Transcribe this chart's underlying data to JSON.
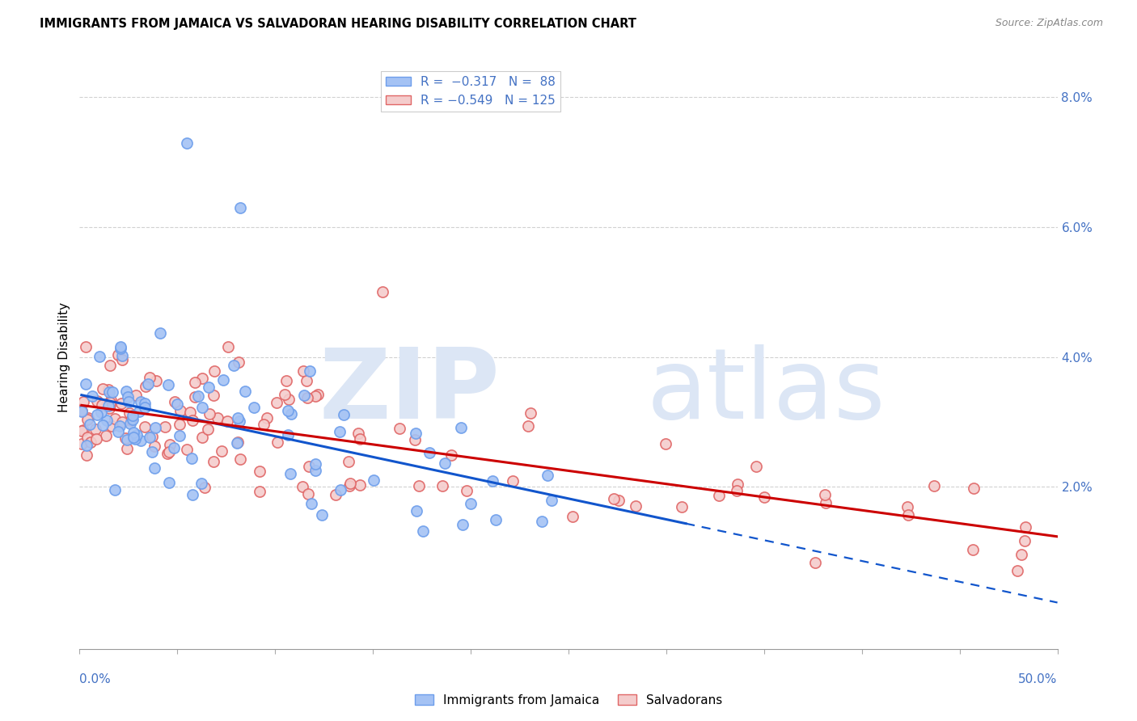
{
  "title": "IMMIGRANTS FROM JAMAICA VS SALVADORAN HEARING DISABILITY CORRELATION CHART",
  "source": "Source: ZipAtlas.com",
  "ylabel": "Hearing Disability",
  "xlim": [
    0.0,
    0.5
  ],
  "ylim": [
    -0.005,
    0.085
  ],
  "blue_color": "#a4c2f4",
  "blue_edge_color": "#6d9eeb",
  "pink_color": "#f4cccc",
  "pink_edge_color": "#e06666",
  "blue_line_color": "#1155cc",
  "pink_line_color": "#cc0000",
  "grid_color": "#cccccc",
  "watermark_zip_color": "#d0d8e8",
  "watermark_atlas_color": "#c8d8e8",
  "title_fontsize": 10.5,
  "source_fontsize": 9,
  "tick_label_color": "#4472c4",
  "legend_label_color": "#4472c4"
}
